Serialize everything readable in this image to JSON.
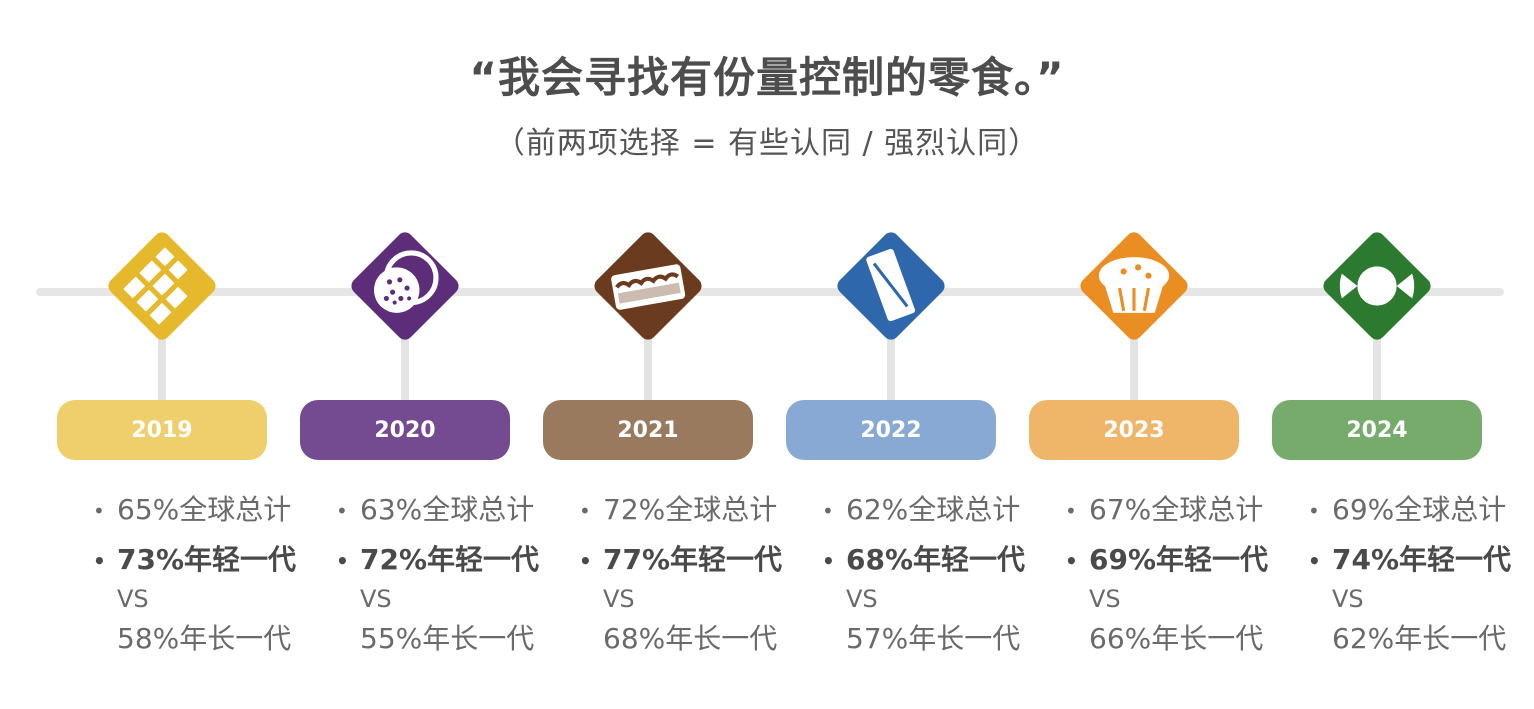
{
  "title": "“我会寻找有份量控制的零食。”",
  "subtitle": "（前两项选择 = 有些认同 / 强烈认同）",
  "bullet": "•",
  "chart_data": {
    "type": "table",
    "categories": [
      "2019",
      "2020",
      "2021",
      "2022",
      "2023",
      "2024"
    ],
    "series": [
      {
        "name": "全球总计",
        "values": [
          65,
          63,
          72,
          62,
          67,
          69
        ]
      },
      {
        "name": "年轻一代",
        "values": [
          73,
          72,
          77,
          68,
          69,
          74
        ]
      },
      {
        "name": "年长一代",
        "values": [
          58,
          55,
          68,
          57,
          66,
          62
        ]
      }
    ]
  },
  "years": [
    {
      "year": "2019",
      "icon": "chocolate-bar-icon",
      "color": "#e6b92c",
      "pill_color": "#efcf6b",
      "global": "65%全球总计",
      "young": "73%年轻一代",
      "vs": "VS",
      "older": "58%年长一代"
    },
    {
      "year": "2020",
      "icon": "cookie-icon",
      "color": "#5e2d79",
      "pill_color": "#744b91",
      "global": "63%全球总计",
      "young": "72%年轻一代",
      "vs": "VS",
      "older": "55%年长一代"
    },
    {
      "year": "2021",
      "icon": "cake-slice-icon",
      "color": "#6b3b1f",
      "pill_color": "#9a7a5f",
      "global": "72%全球总计",
      "young": "77%年轻一代",
      "vs": "VS",
      "older": "68%年长一代"
    },
    {
      "year": "2022",
      "icon": "snack-bar-icon",
      "color": "#2f67ad",
      "pill_color": "#87a9d3",
      "global": "62%全球总计",
      "young": "68%年轻一代",
      "vs": "VS",
      "older": "57%年长一代"
    },
    {
      "year": "2023",
      "icon": "muffin-icon",
      "color": "#ea8d22",
      "pill_color": "#efb66a",
      "global": "67%全球总计",
      "young": "69%年轻一代",
      "vs": "VS",
      "older": "66%年长一代"
    },
    {
      "year": "2024",
      "icon": "candy-icon",
      "color": "#2b7a2f",
      "pill_color": "#76ab6b",
      "global": "69%全球总计",
      "young": "74%年轻一代",
      "vs": "VS",
      "older": "62%年长一代"
    }
  ]
}
